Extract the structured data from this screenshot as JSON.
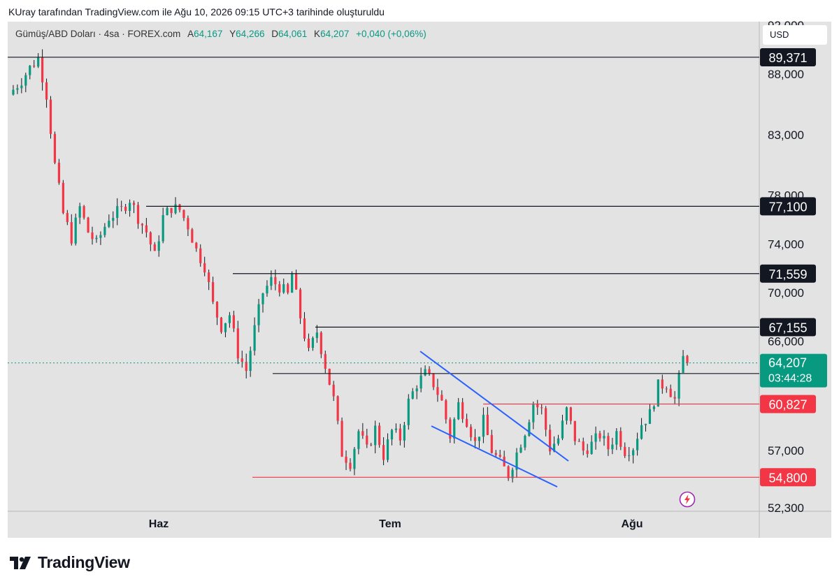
{
  "caption": "KUray tarafından TradingView.com ile Ağu 10, 2026 09:15 UTC+3 tarihinde oluşturuldu",
  "symbol": {
    "name": "Gümüş/ABD Doları · 4sa · FOREX.com",
    "open_label": "A",
    "open": "64,167",
    "high_label": "Y",
    "high": "64,266",
    "low_label": "D",
    "low": "64,061",
    "close_label": "K",
    "close": "64,207",
    "change": "+0,040 (+0,06%)"
  },
  "currency": "USD",
  "brand": "TradingView",
  "colors": {
    "bull": "#089981",
    "bear": "#f23645",
    "panel_bg": "#e3e3e3",
    "level_black": "#131722",
    "level_red": "#f23645",
    "trend_blue": "#2962ff",
    "current_price": "#089981",
    "flash": "#9c27b0"
  },
  "chart_data": {
    "type": "candlestick",
    "title": "",
    "x_ticks": [
      "Haz",
      "Tem",
      "Ağu"
    ],
    "y_ticks": [
      "92,000",
      "88,000",
      "83,000",
      "78,000",
      "74,000",
      "70,000",
      "66,000",
      "57,000",
      "52,300"
    ],
    "current_price": {
      "value": "64,207",
      "countdown": "03:44:28"
    },
    "levels": [
      {
        "value": "89,371",
        "style": "black"
      },
      {
        "value": "77,100",
        "style": "black"
      },
      {
        "value": "71,559",
        "style": "black"
      },
      {
        "value": "67,155",
        "style": "black"
      },
      {
        "value": "63,337",
        "style": "gray"
      },
      {
        "value": "60,827",
        "style": "red"
      },
      {
        "value": "54,800",
        "style": "red"
      }
    ],
    "path_anchors": [
      [
        0,
        86.3
      ],
      [
        3,
        87.5
      ],
      [
        5,
        88.5
      ],
      [
        7,
        89.3
      ],
      [
        9,
        86.3
      ],
      [
        11,
        80.5
      ],
      [
        13,
        76.5
      ],
      [
        15,
        74.5
      ],
      [
        17,
        77.0
      ],
      [
        19,
        75.0
      ],
      [
        21,
        74.0
      ],
      [
        24,
        76.2
      ],
      [
        27,
        76.8
      ],
      [
        29,
        77.7
      ],
      [
        31,
        76.2
      ],
      [
        33,
        75.0
      ],
      [
        35,
        73.0
      ],
      [
        37,
        76.2
      ],
      [
        39,
        77.0
      ],
      [
        41,
        76.8
      ],
      [
        43,
        75.5
      ],
      [
        45,
        73.5
      ],
      [
        47,
        72.2
      ],
      [
        49,
        69.0
      ],
      [
        51,
        67.2
      ],
      [
        53,
        68.2
      ],
      [
        55,
        65.0
      ],
      [
        57,
        63.6
      ],
      [
        59,
        67.0
      ],
      [
        61,
        70.0
      ],
      [
        63,
        71.0
      ],
      [
        65,
        70.5
      ],
      [
        67,
        69.8
      ],
      [
        68,
        71.5
      ],
      [
        70,
        68.0
      ],
      [
        72,
        65.0
      ],
      [
        74,
        66.8
      ],
      [
        76,
        64.0
      ],
      [
        78,
        61.2
      ],
      [
        80,
        56.8
      ],
      [
        82,
        56.0
      ],
      [
        84,
        58.6
      ],
      [
        86,
        57.0
      ],
      [
        88,
        58.8
      ],
      [
        90,
        56.6
      ],
      [
        92,
        58.6
      ],
      [
        94,
        58.0
      ],
      [
        96,
        61.0
      ],
      [
        98,
        62.5
      ],
      [
        100,
        63.3
      ],
      [
        102,
        62.5
      ],
      [
        104,
        61.0
      ],
      [
        106,
        58.2
      ],
      [
        108,
        60.8
      ],
      [
        110,
        59.5
      ],
      [
        112,
        57.6
      ],
      [
        114,
        59.4
      ],
      [
        116,
        57.0
      ],
      [
        118,
        56.0
      ],
      [
        120,
        55.0
      ],
      [
        122,
        56.8
      ],
      [
        124,
        58.6
      ],
      [
        126,
        60.9
      ],
      [
        128,
        60.3
      ],
      [
        130,
        57.2
      ],
      [
        132,
        58.0
      ],
      [
        134,
        60.3
      ],
      [
        136,
        58.0
      ],
      [
        138,
        57.0
      ],
      [
        140,
        57.5
      ],
      [
        142,
        58.3
      ],
      [
        144,
        57.2
      ],
      [
        146,
        58.5
      ],
      [
        148,
        57.0
      ],
      [
        150,
        57.3
      ],
      [
        152,
        59.2
      ],
      [
        154,
        60.0
      ],
      [
        156,
        62.3
      ],
      [
        158,
        62.5
      ],
      [
        160,
        61.2
      ],
      [
        162,
        64.6
      ],
      [
        163,
        64.207
      ]
    ],
    "ylim": [
      52.0,
      92.3
    ]
  }
}
